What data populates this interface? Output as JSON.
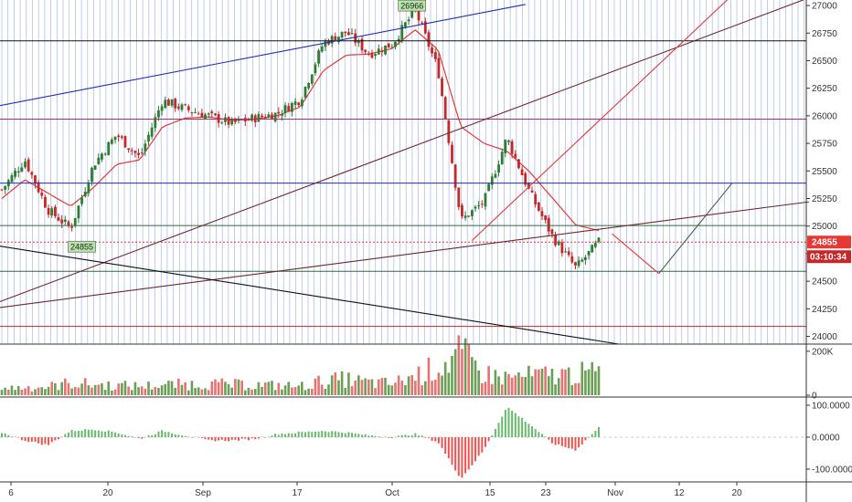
{
  "chart_data": {
    "type": "candlestick",
    "colors": {
      "up": "#2e7d32",
      "down": "#c62828",
      "ma": "#e53935",
      "grid_vertical": "#5b7bd5",
      "volume_up": "#6a9f55",
      "volume_down": "#e57373",
      "osc_up": "#66bb6a",
      "osc_down": "#ef5350",
      "badge_price": "#e53935",
      "badge_timer": "#c62828",
      "label_box": "#b7e4a7"
    },
    "price_axis": {
      "ticks": [
        "27000",
        "26750",
        "26500",
        "26250",
        "26000",
        "25750",
        "25500",
        "25250",
        "25000",
        "24750",
        "24500",
        "24250",
        "24000"
      ],
      "range": [
        23930,
        27050
      ]
    },
    "volume_axis": {
      "ticks": [
        "200K",
        "0"
      ],
      "range": [
        0,
        220000
      ]
    },
    "oscillator_axis": {
      "ticks": [
        "100.0000",
        "0.0000",
        "-100.0000"
      ],
      "range": [
        -140,
        120
      ]
    },
    "x_axis": {
      "labels": [
        "6",
        "20",
        "Sep",
        "17",
        "Oct",
        "15",
        "23",
        "Nov",
        "12",
        "20"
      ]
    },
    "current_price": "24855",
    "countdown": "03:10:34",
    "annotations": [
      {
        "text": "26966",
        "price": 26966,
        "kind": "high-label"
      },
      {
        "text": "24855",
        "price": 24855,
        "kind": "low-label"
      }
    ],
    "horizontal_levels": [
      {
        "price": 26680,
        "color": "#111111"
      },
      {
        "price": 25970,
        "color": "#a0306e"
      },
      {
        "price": 25390,
        "color": "#1f2fb5"
      },
      {
        "price": 25005,
        "color": "#2e6b3a"
      },
      {
        "price": 24855,
        "color": "#e53935",
        "style": "dotted"
      },
      {
        "price": 24590,
        "color": "#2e6b3a"
      },
      {
        "price": 24090,
        "color": "#c62828"
      }
    ],
    "close_anchors": [
      25330,
      25600,
      25150,
      24980,
      25560,
      25830,
      25620,
      26140,
      26060,
      26000,
      25930,
      25980,
      26020,
      26150,
      26660,
      26760,
      26560,
      26650,
      26960,
      26420,
      25050,
      25220,
      25800,
      25300,
      24900,
      24620,
      24855
    ],
    "ma_anchors": [
      25250,
      25420,
      25300,
      25180,
      25350,
      25560,
      25600,
      25900,
      25980,
      25990,
      25960,
      25970,
      26000,
      26080,
      26410,
      26550,
      26560,
      26610,
      26780,
      26600,
      25900,
      25750,
      25680,
      25490,
      25250,
      25010,
      24960
    ],
    "volume_values": [
      40000,
      45000,
      48000,
      70000,
      60000,
      55000,
      52000,
      58000,
      62000,
      65000,
      60000,
      58000,
      55000,
      50000,
      80000,
      90000,
      70000,
      65000,
      110000,
      160000,
      230000,
      120000,
      100000,
      110000,
      115000,
      120000,
      130000
    ],
    "oscillator_values": [
      15,
      -10,
      -25,
      20,
      25,
      15,
      -5,
      20,
      5,
      -10,
      -10,
      -5,
      10,
      15,
      20,
      15,
      5,
      0,
      10,
      -15,
      -130,
      -40,
      95,
      40,
      -20,
      -40,
      30
    ]
  }
}
